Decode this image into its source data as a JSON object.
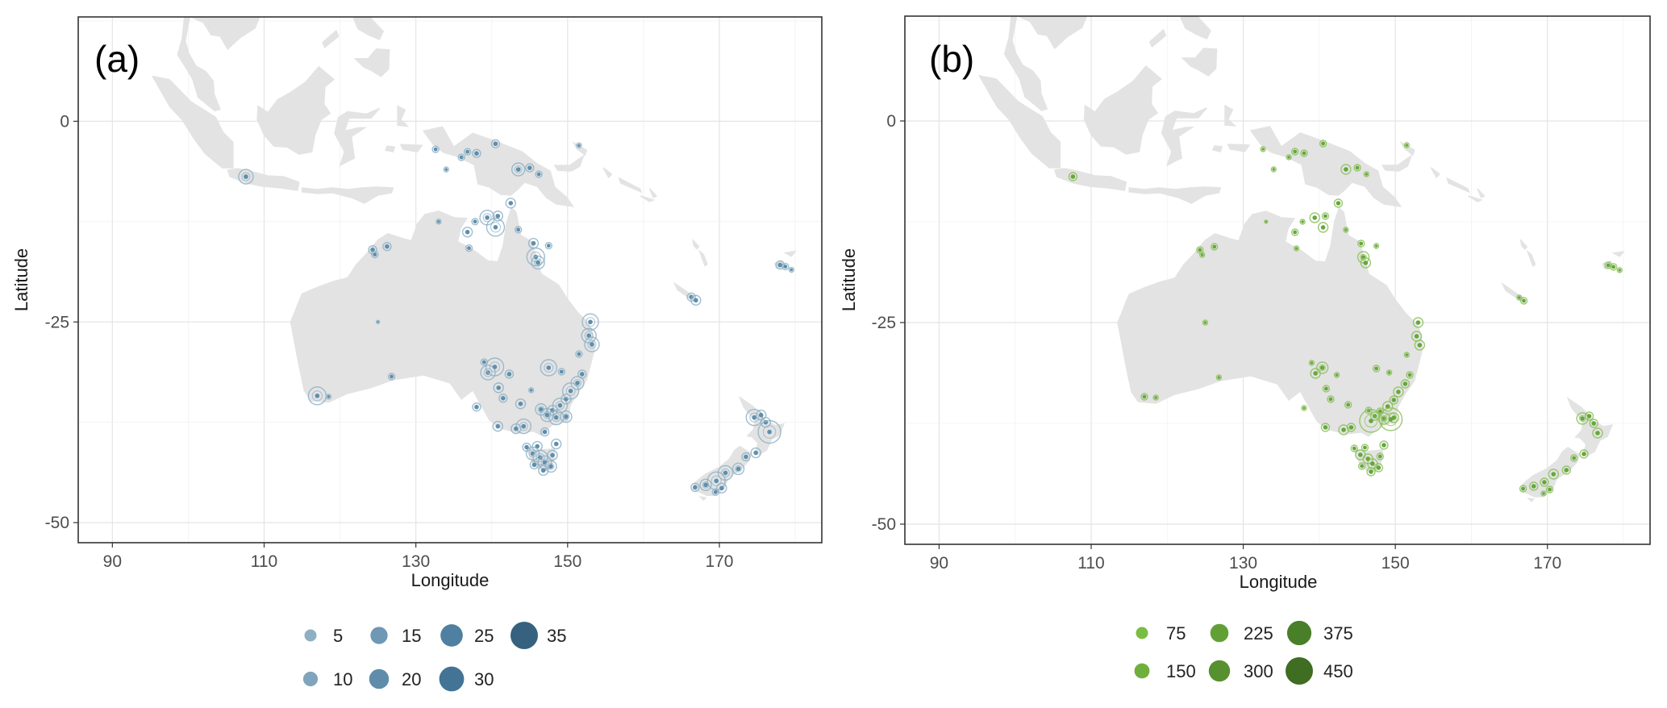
{
  "panels": [
    {
      "id": "a",
      "label": "(a)",
      "xlabel": "Longitude",
      "ylabel": "Latitude",
      "xticks": [
        90,
        110,
        130,
        150,
        170
      ],
      "yticks": [
        0,
        -25,
        -50
      ],
      "xlim": [
        85.5,
        183.5
      ],
      "ylim": [
        -52.5,
        13
      ],
      "ring_color": "#8fb1c6",
      "dot_color": "#5d8fae",
      "legend": {
        "values": [
          "5",
          "10",
          "15",
          "20",
          "25",
          "30",
          "35"
        ],
        "colors": [
          "#8fb0c4",
          "#7fa4bc",
          "#6f98b4",
          "#5f8cab",
          "#4f80a1",
          "#437496",
          "#36627f"
        ]
      },
      "points": [
        [
          107.6,
          -6.9,
          9
        ],
        [
          132.6,
          -3.5,
          4
        ],
        [
          134.0,
          -6.0,
          3
        ],
        [
          136.0,
          -4.5,
          4
        ],
        [
          136.8,
          -3.8,
          4
        ],
        [
          138.0,
          -4.0,
          5
        ],
        [
          140.5,
          -2.8,
          5
        ],
        [
          143.5,
          -6.0,
          8
        ],
        [
          145.0,
          -5.8,
          5
        ],
        [
          146.2,
          -6.6,
          4
        ],
        [
          151.5,
          -3.0,
          3
        ],
        [
          142.5,
          -10.2,
          6
        ],
        [
          139.4,
          -12.0,
          9
        ],
        [
          140.5,
          -13.2,
          11
        ],
        [
          140.8,
          -11.8,
          6
        ],
        [
          137.8,
          -12.5,
          4
        ],
        [
          136.8,
          -13.8,
          6
        ],
        [
          143.5,
          -13.5,
          4
        ],
        [
          145.5,
          -15.2,
          6
        ],
        [
          145.8,
          -16.9,
          11
        ],
        [
          146.1,
          -17.6,
          8
        ],
        [
          147.5,
          -15.5,
          4
        ],
        [
          137.0,
          -15.8,
          4
        ],
        [
          133.0,
          -12.5,
          3
        ],
        [
          124.3,
          -16.0,
          5
        ],
        [
          124.6,
          -16.6,
          4
        ],
        [
          126.2,
          -15.6,
          5
        ],
        [
          125.0,
          -25.0,
          2
        ],
        [
          117.0,
          -34.2,
          11
        ],
        [
          118.5,
          -34.3,
          3
        ],
        [
          126.8,
          -31.8,
          4
        ],
        [
          139.5,
          -31.3,
          9
        ],
        [
          140.4,
          -30.6,
          11
        ],
        [
          139.0,
          -30.0,
          4
        ],
        [
          142.3,
          -31.5,
          5
        ],
        [
          147.5,
          -30.7,
          10
        ],
        [
          140.9,
          -33.2,
          6
        ],
        [
          141.5,
          -34.5,
          5
        ],
        [
          143.8,
          -35.2,
          6
        ],
        [
          145.2,
          -33.5,
          3
        ],
        [
          144.2,
          -38.0,
          9
        ],
        [
          143.2,
          -38.3,
          6
        ],
        [
          140.8,
          -38.0,
          6
        ],
        [
          138.0,
          -35.6,
          5
        ],
        [
          146.5,
          -35.9,
          7
        ],
        [
          147.3,
          -36.6,
          8
        ],
        [
          148.0,
          -36.0,
          6
        ],
        [
          149.0,
          -35.4,
          9
        ],
        [
          149.8,
          -34.6,
          6
        ],
        [
          150.4,
          -33.6,
          10
        ],
        [
          151.3,
          -32.6,
          8
        ],
        [
          151.9,
          -31.5,
          5
        ],
        [
          149.2,
          -31.2,
          4
        ],
        [
          152.8,
          -26.7,
          9
        ],
        [
          153.0,
          -25.0,
          10
        ],
        [
          153.2,
          -27.8,
          9
        ],
        [
          151.5,
          -29.0,
          4
        ],
        [
          149.8,
          -36.8,
          7
        ],
        [
          148.5,
          -36.9,
          9
        ],
        [
          147.0,
          -38.7,
          5
        ],
        [
          146.0,
          -40.5,
          6
        ],
        [
          145.4,
          -41.4,
          8
        ],
        [
          146.4,
          -41.9,
          9
        ],
        [
          147.0,
          -42.5,
          8
        ],
        [
          147.8,
          -43.0,
          7
        ],
        [
          146.8,
          -43.5,
          6
        ],
        [
          145.6,
          -42.8,
          5
        ],
        [
          148.0,
          -41.6,
          6
        ],
        [
          148.5,
          -40.2,
          6
        ],
        [
          144.6,
          -40.6,
          5
        ],
        [
          166.3,
          -21.9,
          5
        ],
        [
          166.9,
          -22.3,
          6
        ],
        [
          178.0,
          -17.9,
          5
        ],
        [
          178.7,
          -18.1,
          4
        ],
        [
          179.5,
          -18.5,
          3
        ],
        [
          174.6,
          -36.9,
          10
        ],
        [
          175.5,
          -36.6,
          6
        ],
        [
          176.1,
          -37.5,
          6
        ],
        [
          176.6,
          -38.7,
          14
        ],
        [
          174.8,
          -41.3,
          6
        ],
        [
          173.5,
          -41.8,
          5
        ],
        [
          172.5,
          -43.3,
          7
        ],
        [
          170.8,
          -43.8,
          9
        ],
        [
          169.6,
          -44.8,
          11
        ],
        [
          168.2,
          -45.3,
          7
        ],
        [
          170.3,
          -45.7,
          6
        ],
        [
          169.5,
          -46.2,
          4
        ],
        [
          166.8,
          -45.6,
          5
        ]
      ]
    },
    {
      "id": "b",
      "label": "(b)",
      "xlabel": "Longitude",
      "ylabel": "Latitude",
      "xticks": [
        90,
        110,
        130,
        150,
        170
      ],
      "yticks": [
        0,
        -25,
        -50
      ],
      "xlim": [
        85.5,
        183.5
      ],
      "ylim": [
        -52.5,
        13
      ],
      "ring_color": "#8cc05a",
      "dot_color": "#64a83a",
      "legend": {
        "values": [
          "75",
          "150",
          "225",
          "300",
          "375",
          "450"
        ],
        "colors": [
          "#7bbd44",
          "#6fb03c",
          "#62a035",
          "#56902f",
          "#4a7f29",
          "#3f6d22"
        ]
      },
      "points": [
        [
          107.6,
          -6.9,
          5
        ],
        [
          132.6,
          -3.5,
          3
        ],
        [
          134.0,
          -6.0,
          3
        ],
        [
          136.0,
          -4.5,
          3
        ],
        [
          136.8,
          -3.8,
          4
        ],
        [
          138.0,
          -4.0,
          4
        ],
        [
          140.5,
          -2.8,
          4
        ],
        [
          143.5,
          -6.0,
          6
        ],
        [
          145.0,
          -5.8,
          4
        ],
        [
          146.2,
          -6.6,
          3
        ],
        [
          151.5,
          -3.0,
          3
        ],
        [
          142.5,
          -10.2,
          5
        ],
        [
          139.4,
          -12.0,
          6
        ],
        [
          140.5,
          -13.2,
          6
        ],
        [
          140.8,
          -11.8,
          4
        ],
        [
          137.8,
          -12.5,
          3
        ],
        [
          136.8,
          -13.8,
          4
        ],
        [
          143.5,
          -13.5,
          3
        ],
        [
          145.5,
          -15.2,
          4
        ],
        [
          145.8,
          -16.9,
          7
        ],
        [
          146.1,
          -17.6,
          6
        ],
        [
          147.5,
          -15.5,
          3
        ],
        [
          137.0,
          -15.8,
          3
        ],
        [
          133.0,
          -12.5,
          2
        ],
        [
          124.3,
          -16.0,
          4
        ],
        [
          124.6,
          -16.6,
          3
        ],
        [
          126.2,
          -15.6,
          4
        ],
        [
          125.0,
          -25.0,
          3
        ],
        [
          117.0,
          -34.2,
          4
        ],
        [
          118.5,
          -34.3,
          3
        ],
        [
          126.8,
          -31.8,
          3
        ],
        [
          139.5,
          -31.3,
          6
        ],
        [
          140.4,
          -30.6,
          7
        ],
        [
          139.0,
          -30.0,
          3
        ],
        [
          142.3,
          -31.5,
          3
        ],
        [
          147.5,
          -30.7,
          4
        ],
        [
          140.9,
          -33.2,
          4
        ],
        [
          141.5,
          -34.5,
          4
        ],
        [
          143.8,
          -35.2,
          4
        ],
        [
          144.2,
          -38.0,
          5
        ],
        [
          143.2,
          -38.3,
          6
        ],
        [
          140.8,
          -38.0,
          5
        ],
        [
          138.0,
          -35.6,
          3
        ],
        [
          146.5,
          -35.9,
          4
        ],
        [
          147.3,
          -36.6,
          5
        ],
        [
          148.0,
          -36.0,
          4
        ],
        [
          149.0,
          -35.4,
          6
        ],
        [
          149.8,
          -34.6,
          5
        ],
        [
          150.4,
          -33.6,
          6
        ],
        [
          151.3,
          -32.6,
          5
        ],
        [
          151.9,
          -31.5,
          4
        ],
        [
          149.2,
          -31.2,
          3
        ],
        [
          152.8,
          -26.7,
          6
        ],
        [
          153.0,
          -25.0,
          6
        ],
        [
          153.2,
          -27.8,
          6
        ],
        [
          151.5,
          -29.0,
          3
        ],
        [
          149.8,
          -36.8,
          6
        ],
        [
          148.5,
          -36.9,
          7
        ],
        [
          146.8,
          -37.2,
          14
        ],
        [
          149.4,
          -37.0,
          14
        ],
        [
          146.0,
          -40.5,
          4
        ],
        [
          145.4,
          -41.4,
          6
        ],
        [
          146.4,
          -41.9,
          6
        ],
        [
          147.0,
          -42.5,
          6
        ],
        [
          147.8,
          -43.0,
          5
        ],
        [
          146.8,
          -43.5,
          5
        ],
        [
          145.6,
          -42.8,
          4
        ],
        [
          148.0,
          -41.6,
          4
        ],
        [
          148.5,
          -40.2,
          5
        ],
        [
          144.6,
          -40.6,
          4
        ],
        [
          166.3,
          -21.9,
          3
        ],
        [
          166.9,
          -22.3,
          4
        ],
        [
          178.0,
          -17.9,
          4
        ],
        [
          178.7,
          -18.1,
          4
        ],
        [
          179.5,
          -18.5,
          3
        ],
        [
          174.6,
          -36.9,
          7
        ],
        [
          175.5,
          -36.6,
          5
        ],
        [
          176.1,
          -37.5,
          5
        ],
        [
          176.6,
          -38.7,
          6
        ],
        [
          174.8,
          -41.3,
          5
        ],
        [
          173.5,
          -41.8,
          4
        ],
        [
          172.5,
          -43.3,
          5
        ],
        [
          170.8,
          -43.8,
          6
        ],
        [
          169.6,
          -44.8,
          5
        ],
        [
          168.2,
          -45.3,
          5
        ],
        [
          170.3,
          -45.7,
          4
        ],
        [
          169.5,
          -46.2,
          3
        ],
        [
          166.8,
          -45.6,
          4
        ]
      ]
    }
  ]
}
